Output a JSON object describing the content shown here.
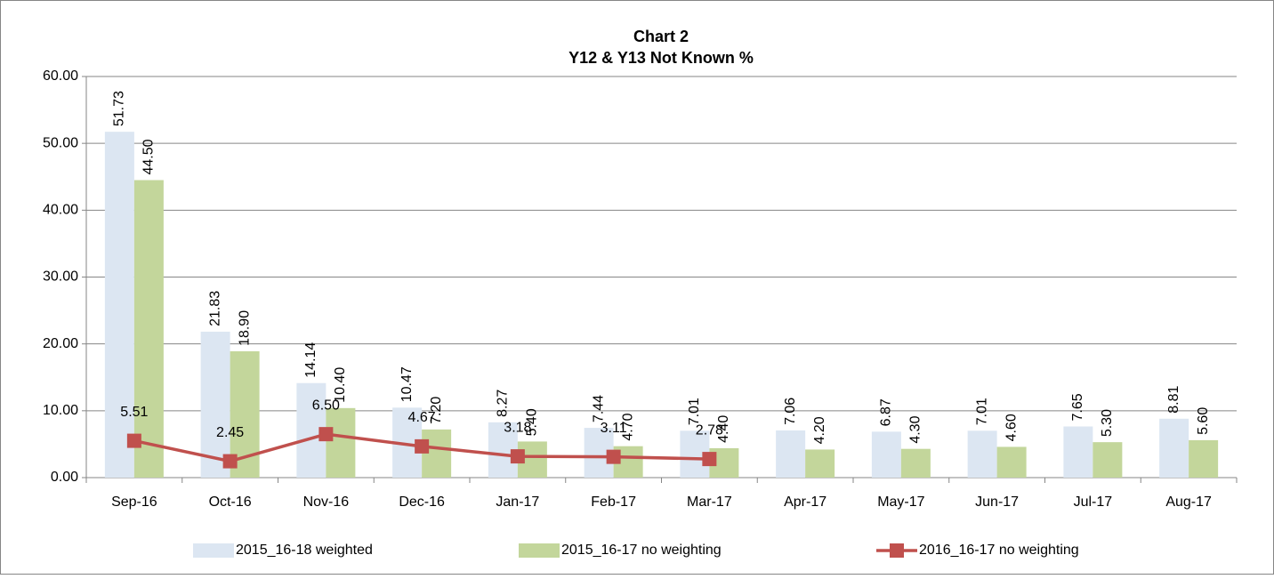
{
  "chart_data": {
    "type": "bar",
    "title": "Chart 2",
    "subtitle": "Y12 & Y13 Not Known %",
    "categories": [
      "Sep-16",
      "Oct-16",
      "Nov-16",
      "Dec-16",
      "Jan-17",
      "Feb-17",
      "Mar-17",
      "Apr-17",
      "May-17",
      "Jun-17",
      "Jul-17",
      "Aug-17"
    ],
    "ylim": [
      0,
      60
    ],
    "yticks": [
      {
        "value": 0,
        "label": "0.00"
      },
      {
        "value": 10,
        "label": "10.00"
      },
      {
        "value": 20,
        "label": "20.00"
      },
      {
        "value": 30,
        "label": "30.00"
      },
      {
        "value": 40,
        "label": "40.00"
      },
      {
        "value": 50,
        "label": "50.00"
      },
      {
        "value": 60,
        "label": "60.00"
      }
    ],
    "grid": true,
    "legend": "bottom",
    "series": [
      {
        "name": "2015_16-18 weighted",
        "type": "bar",
        "color": "#dce6f2",
        "values": [
          51.73,
          21.83,
          14.14,
          10.47,
          8.27,
          7.44,
          7.01,
          7.06,
          6.87,
          7.01,
          7.65,
          8.81
        ],
        "value_labels": [
          "51.73",
          "21.83",
          "14.14",
          "10.47",
          "8.27",
          "7.44",
          "7.01",
          "7.06",
          "6.87",
          "7.01",
          "7.65",
          "8.81"
        ]
      },
      {
        "name": "2015_16-17 no weighting",
        "type": "bar",
        "color": "#c3d69b",
        "values": [
          44.5,
          18.9,
          10.4,
          7.2,
          5.4,
          4.7,
          4.4,
          4.2,
          4.3,
          4.6,
          5.3,
          5.6
        ],
        "value_labels": [
          "44.50",
          "18.90",
          "10.40",
          "7.20",
          "5.40",
          "4.70",
          "4.40",
          "4.20",
          "4.30",
          "4.60",
          "5.30",
          "5.60"
        ]
      },
      {
        "name": "2016_16-17 no weighting",
        "type": "line",
        "color": "#c0504d",
        "values": [
          5.51,
          2.45,
          6.5,
          4.67,
          3.18,
          3.11,
          2.78,
          null,
          null,
          null,
          null,
          null
        ],
        "value_labels": [
          "5.51",
          "2.45",
          "6.50",
          "4.67",
          "3.18",
          "3.11",
          "2.78",
          null,
          null,
          null,
          null,
          null
        ]
      }
    ]
  }
}
